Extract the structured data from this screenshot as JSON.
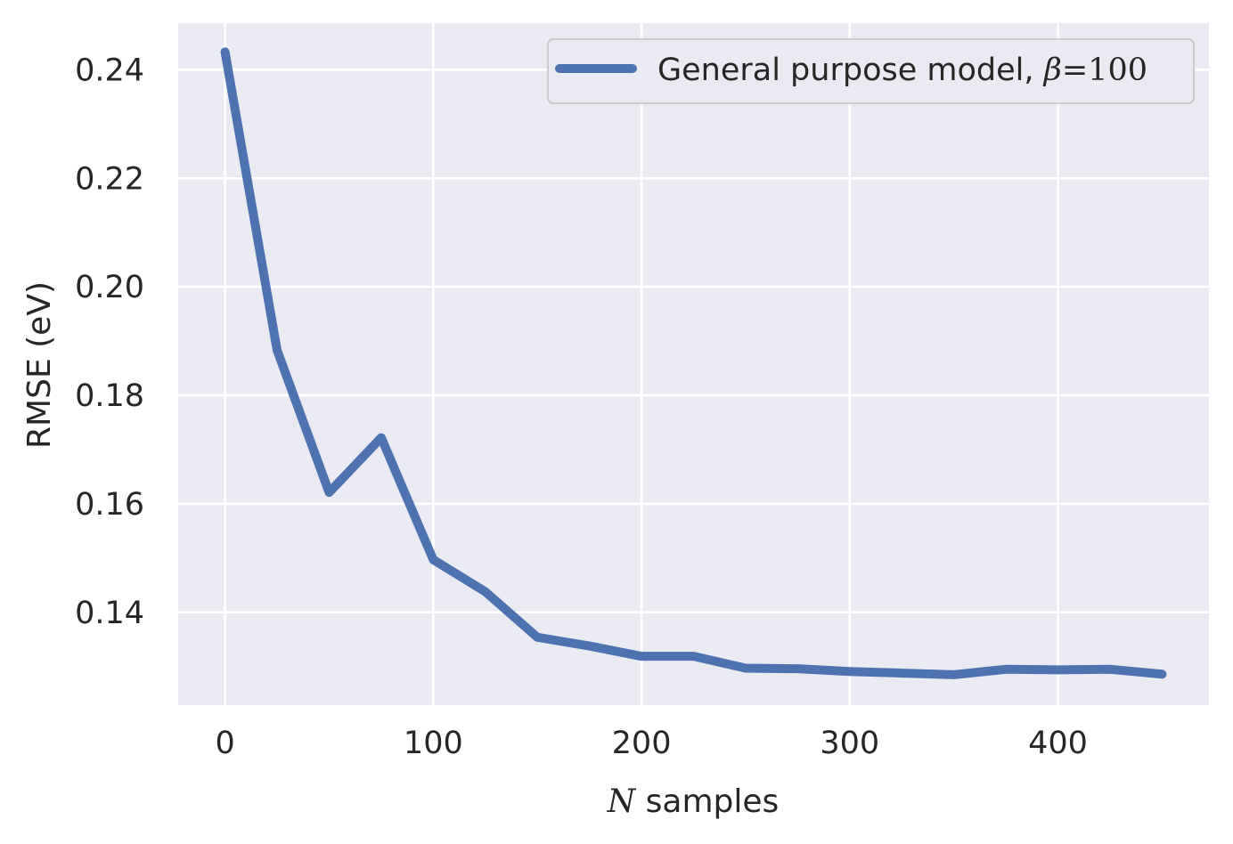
{
  "chart_data": {
    "type": "line",
    "xlabel": {
      "math": "N",
      "text": " samples"
    },
    "ylabel": "RMSE (eV)",
    "xlim": [
      -22.5,
      472.5
    ],
    "ylim": [
      0.1229,
      0.2486
    ],
    "xticks": [
      0,
      100,
      200,
      300,
      400
    ],
    "xtick_labels": [
      "0",
      "100",
      "200",
      "300",
      "400"
    ],
    "yticks": [
      0.14,
      0.16,
      0.18,
      0.2,
      0.22,
      0.24
    ],
    "ytick_labels": [
      "0.14",
      "0.16",
      "0.18",
      "0.20",
      "0.22",
      "0.24"
    ],
    "grid": true,
    "legend_position": "top-right",
    "series": [
      {
        "name": "General purpose model, ",
        "name_math": "β",
        "name_math_eq": "=",
        "name_math_value": "100",
        "color": "#4c72b0",
        "x": [
          0,
          25,
          50,
          75,
          100,
          125,
          150,
          175,
          200,
          225,
          250,
          275,
          300,
          325,
          350,
          375,
          400,
          425,
          450
        ],
        "y": [
          0.2433,
          0.1883,
          0.1621,
          0.1722,
          0.1497,
          0.1438,
          0.1354,
          0.1338,
          0.1319,
          0.1319,
          0.1297,
          0.1296,
          0.1291,
          0.1288,
          0.1285,
          0.1295,
          0.1294,
          0.1295,
          0.1286
        ]
      }
    ]
  }
}
